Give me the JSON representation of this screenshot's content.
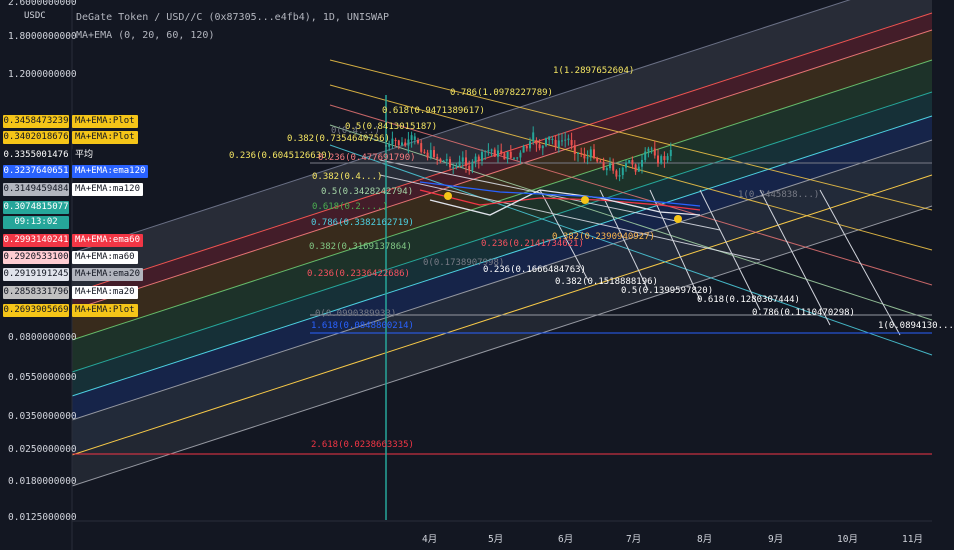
{
  "header": {
    "title": "DeGate Token / USD//C (0x87305...e4fb4), 1D, UNISWAP",
    "indicator": "MA+EMA (0, 20, 60, 120)",
    "unit": "USDC"
  },
  "y_axis_labels": [
    "2.6000000000",
    "1.8000000000",
    "1.2000000000",
    "0.0800000000",
    "0.0550000000",
    "0.0350000000",
    "0.0250000000",
    "0.0180000000",
    "0.0125000000"
  ],
  "x_axis_labels": [
    "4月",
    "5月",
    "6月",
    "7月",
    "8月",
    "9月",
    "10月",
    "11月"
  ],
  "price_badges": [
    {
      "value": "0.3458473239",
      "label": "MA+EMA:Plot",
      "bg": "#f5c518",
      "fg": "#131722",
      "lbg": "#f5c518",
      "lfg": "#131722"
    },
    {
      "value": "0.3402018676",
      "label": "MA+EMA:Plot",
      "bg": "#f5c518",
      "fg": "#131722",
      "lbg": "#f5c518",
      "lfg": "#131722"
    },
    {
      "value": "0.3355001476",
      "label": "平均",
      "bg": "#131722",
      "fg": "#ffffff",
      "lbg": "#131722",
      "lfg": "#ffffff"
    },
    {
      "value": "0.3237640651",
      "label": "MA+EMA:ema120",
      "bg": "#2962ff",
      "fg": "#ffffff",
      "lbg": "#2962ff",
      "lfg": "#ffffff"
    },
    {
      "value": "0.3149459484",
      "label": "MA+EMA:ma120",
      "bg": "#b2b5be",
      "fg": "#131722",
      "lbg": "#ffffff",
      "lfg": "#131722"
    },
    {
      "value": "0.3074815077",
      "label": "",
      "bg": "#26a69a",
      "fg": "#ffffff",
      "lbg": "",
      "lfg": ""
    },
    {
      "value": "09:13:02",
      "label": "",
      "bg": "#26a69a",
      "fg": "#ffffff",
      "lbg": "",
      "lfg": ""
    },
    {
      "value": "0.2993140241",
      "label": "MA+EMA:ema60",
      "bg": "#f23645",
      "fg": "#ffffff",
      "lbg": "#f23645",
      "lfg": "#ffffff"
    },
    {
      "value": "0.2920533100",
      "label": "MA+EMA:ma60",
      "bg": "#ffcdd2",
      "fg": "#131722",
      "lbg": "#ffffff",
      "lfg": "#131722"
    },
    {
      "value": "0.2919191245",
      "label": "MA+EMA:ema20",
      "bg": "#e0e3eb",
      "fg": "#131722",
      "lbg": "#b2b5be",
      "lfg": "#131722"
    },
    {
      "value": "0.2858331796",
      "label": "MA+EMA:ma20",
      "bg": "#c0c0c0",
      "fg": "#131722",
      "lbg": "#ffffff",
      "lfg": "#131722"
    },
    {
      "value": "0.2693905669",
      "label": "MA+EMA:Plot",
      "bg": "#f5c518",
      "fg": "#131722",
      "lbg": "#f5c518",
      "lfg": "#131722"
    }
  ],
  "fib_retracement_labels": [
    {
      "text": "0.382(0.7354640756)",
      "color": "#f5e663"
    },
    {
      "text": "0.5(0.8413015187)",
      "color": "#f5e663"
    },
    {
      "text": "0.618(0.9471389617)",
      "color": "#f5e663"
    },
    {
      "text": "0.786(1.0978227789)",
      "color": "#f5e663"
    },
    {
      "text": "1(1.2897652604)",
      "color": "#f5e663"
    },
    {
      "text": "0.236(0.6045126630)",
      "color": "#f5e663"
    },
    {
      "text": "0(0.4...)",
      "color": "#787b86"
    },
    {
      "text": "0.236(0.477691790)",
      "color": "#f77c80"
    },
    {
      "text": "0.382(0.4...)",
      "color": "#f5e663"
    },
    {
      "text": "0.5(0.3428242794)",
      "color": "#a5d6a7"
    },
    {
      "text": "0.618(0.2....)",
      "color": "#4caf50"
    },
    {
      "text": "0.786(0.3382162719)",
      "color": "#4dd0e1"
    },
    {
      "text": "0.382(0.3169137864)",
      "color": "#81c784"
    },
    {
      "text": "0(0.1738907998)",
      "color": "#787b86"
    },
    {
      "text": "0.236(0.2336422686)",
      "color": "#f7525f"
    },
    {
      "text": "0.236(0.2141734621)",
      "color": "#f7525f"
    },
    {
      "text": "0.382(0.2390940927)",
      "color": "#ffb74d"
    },
    {
      "text": "0(0.0990389933)",
      "color": "#787b86"
    },
    {
      "text": "1.618(0.0848800214)",
      "color": "#2962ff"
    },
    {
      "text": "2.618(0.0238663335)",
      "color": "#f23645"
    },
    {
      "text": "1(0.3445838...)",
      "color": "#787b86"
    }
  ],
  "fib_fan_labels": [
    {
      "text": "0.236(0.1666484763)"
    },
    {
      "text": "0.382(0.1518888196)"
    },
    {
      "text": "0.5(0.1399597820)"
    },
    {
      "text": "0.618(0.1280307444)"
    },
    {
      "text": "0.786(0.1110470298)"
    },
    {
      "text": "1(0.0894130..."
    }
  ],
  "colors": {
    "background": "#131722",
    "up": "#26a69a",
    "down": "#ef5350",
    "ema120": "#2962ff",
    "ema60": "#f23645",
    "plot": "#f5c518"
  },
  "chart_data": {
    "type": "line",
    "title": "DeGate Token / USD//C (0x87305...e4fb4), 1D, UNISWAP",
    "ylabel": "USDC",
    "log_scale": true,
    "x": [
      "4月",
      "5月",
      "6月",
      "7月",
      "8月",
      "9月",
      "10月",
      "11月"
    ],
    "series": [
      {
        "name": "MA+EMA:ema120",
        "last": 0.3237640651
      },
      {
        "name": "MA+EMA:ma120",
        "last": 0.3149459484
      },
      {
        "name": "MA+EMA:ema60",
        "last": 0.2993140241
      },
      {
        "name": "MA+EMA:ma60",
        "last": 0.29205331
      },
      {
        "name": "MA+EMA:ema20",
        "last": 0.2919191245
      },
      {
        "name": "MA+EMA:ma20",
        "last": 0.2858331796
      }
    ],
    "last_price": 0.3074815077,
    "grid": false
  }
}
